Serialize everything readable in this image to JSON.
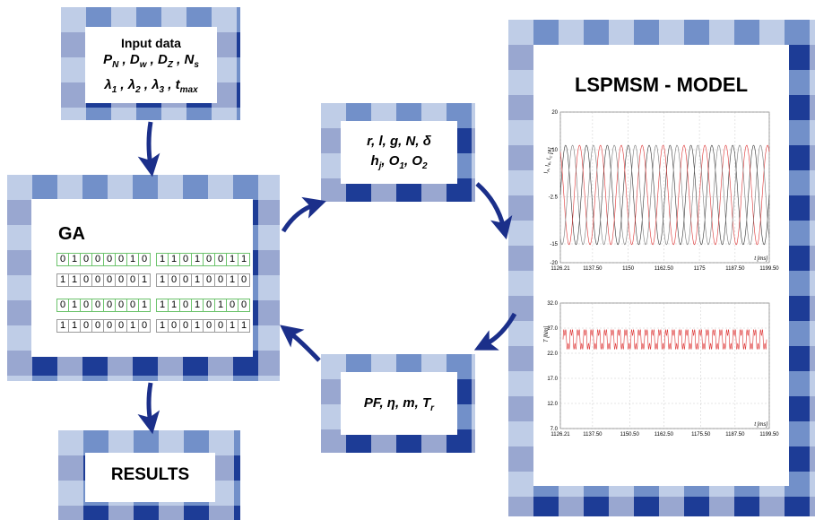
{
  "input": {
    "title": "Input data",
    "lines": [
      {
        "separator": " , ",
        "terms": [
          {
            "base": "P",
            "sub": "N"
          },
          {
            "base": "D",
            "sub": "w"
          },
          {
            "base": "D",
            "sub": "Z"
          },
          {
            "base": "N",
            "sub": "s"
          }
        ]
      },
      {
        "separator": " , ",
        "terms": [
          {
            "base": "λ",
            "sub": "1"
          },
          {
            "base": "λ",
            "sub": "2"
          },
          {
            "base": "λ",
            "sub": "3"
          },
          {
            "base": "t",
            "sub": "max"
          }
        ]
      }
    ]
  },
  "ga": {
    "title": "GA",
    "rows": [
      {
        "color": "#6cc36c",
        "groups": [
          [
            "0",
            "1",
            "0",
            "0",
            "0",
            "0",
            "1",
            "0"
          ],
          [
            "1",
            "1",
            "0",
            "1",
            "0",
            "0",
            "1",
            "1"
          ]
        ]
      },
      {
        "color": "#9a9a9a",
        "groups": [
          [
            "1",
            "1",
            "0",
            "0",
            "0",
            "0",
            "0",
            "1"
          ],
          [
            "1",
            "0",
            "0",
            "1",
            "0",
            "0",
            "1",
            "0"
          ]
        ]
      },
      {
        "color": "#6cc36c",
        "groups": [
          [
            "0",
            "1",
            "0",
            "0",
            "0",
            "0",
            "0",
            "1"
          ],
          [
            "1",
            "1",
            "0",
            "1",
            "0",
            "1",
            "0",
            "0"
          ]
        ]
      },
      {
        "color": "#9a9a9a",
        "groups": [
          [
            "1",
            "1",
            "0",
            "0",
            "0",
            "0",
            "1",
            "0"
          ],
          [
            "1",
            "0",
            "0",
            "1",
            "0",
            "0",
            "1",
            "1"
          ]
        ]
      }
    ]
  },
  "params": {
    "lines": [
      {
        "separator": ", ",
        "terms": [
          {
            "base": "r"
          },
          {
            "base": "l"
          },
          {
            "base": "g"
          },
          {
            "base": "N"
          },
          {
            "base": "δ"
          }
        ]
      },
      {
        "separator": ", ",
        "terms": [
          {
            "base": "h",
            "sub": "j"
          },
          {
            "base": "O",
            "sub": "1"
          },
          {
            "base": "O",
            "sub": "2"
          }
        ]
      }
    ]
  },
  "outputs": {
    "lines": [
      {
        "separator": ", ",
        "terms": [
          {
            "base": "PF"
          },
          {
            "base": "η"
          },
          {
            "base": "m"
          },
          {
            "base": "T",
            "sub": "r"
          }
        ]
      }
    ]
  },
  "results": {
    "title": "RESULTS"
  },
  "model": {
    "title": "LSPMSM - MODEL",
    "charts": [
      {
        "type": "line",
        "xlabel": "t [ms]",
        "ylabel": {
          "separator": ", ",
          "terms": [
            {
              "base": "I",
              "sub": "A"
            },
            {
              "base": "I",
              "sub": "B"
            },
            {
              "base": "I",
              "sub": "C"
            }
          ],
          "unit": " [A]"
        },
        "xlim": [
          1126.21,
          1199.5
        ],
        "xticks": [
          1126.21,
          {
            "value": 1137.5,
            "label": "1137.50"
          },
          1150,
          {
            "value": 1162.5,
            "label": "1162.50"
          },
          1175,
          {
            "value": 1187.5,
            "label": "1187.50"
          },
          {
            "value": 1199.5,
            "label": "1199.50"
          }
        ],
        "ylim": [
          -20,
          20
        ],
        "yticks": [
          20,
          10,
          -2.5,
          -15,
          -20
        ],
        "grid": true
      },
      {
        "type": "line",
        "xlabel": "t [ms]",
        "ylabel": "T [Nm]",
        "xlim": [
          1126.21,
          1199.5
        ],
        "xticks": [
          1126.21,
          {
            "value": 1137.5,
            "label": "1137.50"
          },
          {
            "value": 1150.5,
            "label": "1150.50"
          },
          {
            "value": 1162.5,
            "label": "1162.50"
          },
          {
            "value": 1175.5,
            "label": "1175.50"
          },
          {
            "value": 1187.5,
            "label": "1187.50"
          },
          {
            "value": 1199.5,
            "label": "1199.50"
          }
        ],
        "ylim": [
          7,
          32
        ],
        "yticks": [
          {
            "value": 32,
            "label": "32.0"
          },
          {
            "value": 27,
            "label": "27.0"
          },
          {
            "value": 22,
            "label": "22.0"
          },
          {
            "value": 17,
            "label": "17.0"
          },
          {
            "value": 12,
            "label": "12.0"
          },
          {
            "value": 7,
            "label": "7.0"
          }
        ],
        "grid": true
      }
    ]
  }
}
